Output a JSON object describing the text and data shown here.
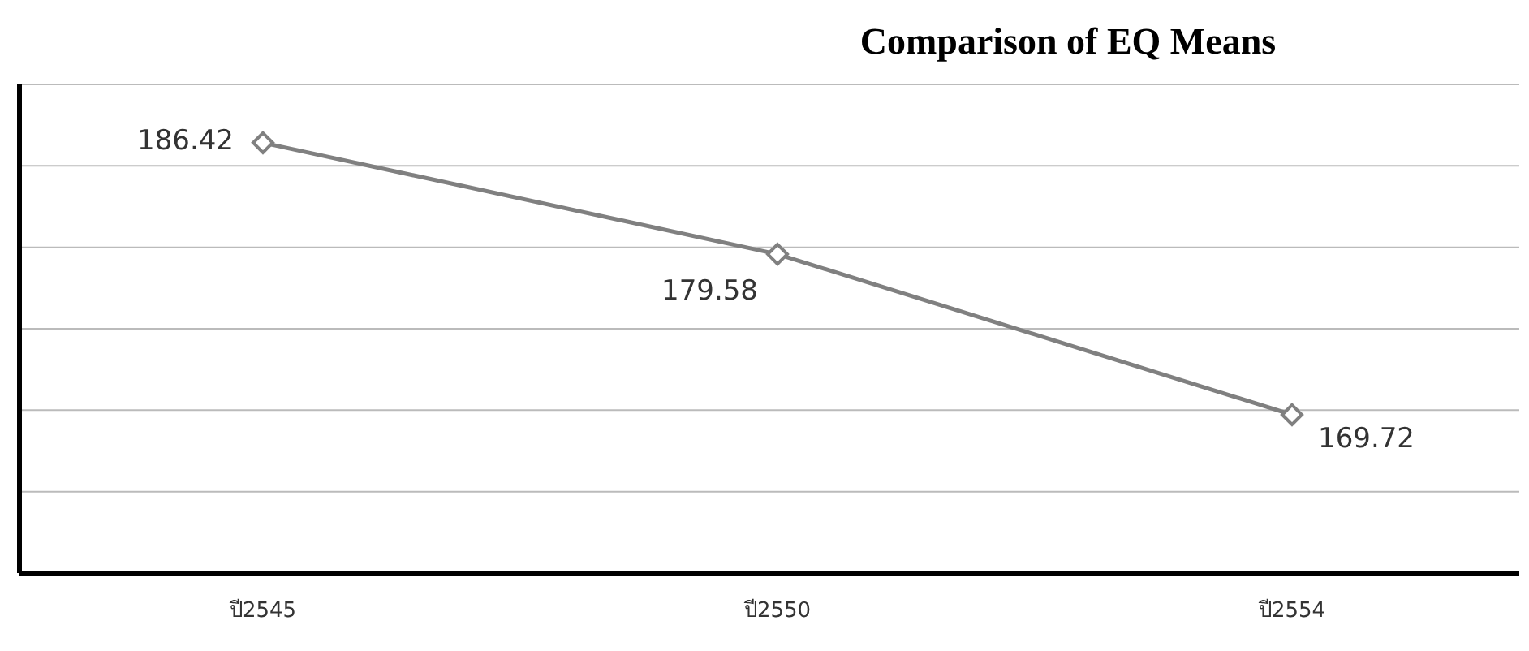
{
  "chart_data": {
    "type": "line",
    "title": "Comparison of EQ Means",
    "categories": [
      "ปี2545",
      "ปี2550",
      "ปี2554"
    ],
    "series": [
      {
        "color": "#808080",
        "values": [
          186.42,
          179.58,
          169.72
        ]
      }
    ],
    "ylim": [
      160,
      190
    ],
    "tick_labels": "x",
    "grid": "y",
    "marker": "diamond",
    "data_labels": true,
    "line_style": "solid"
  }
}
